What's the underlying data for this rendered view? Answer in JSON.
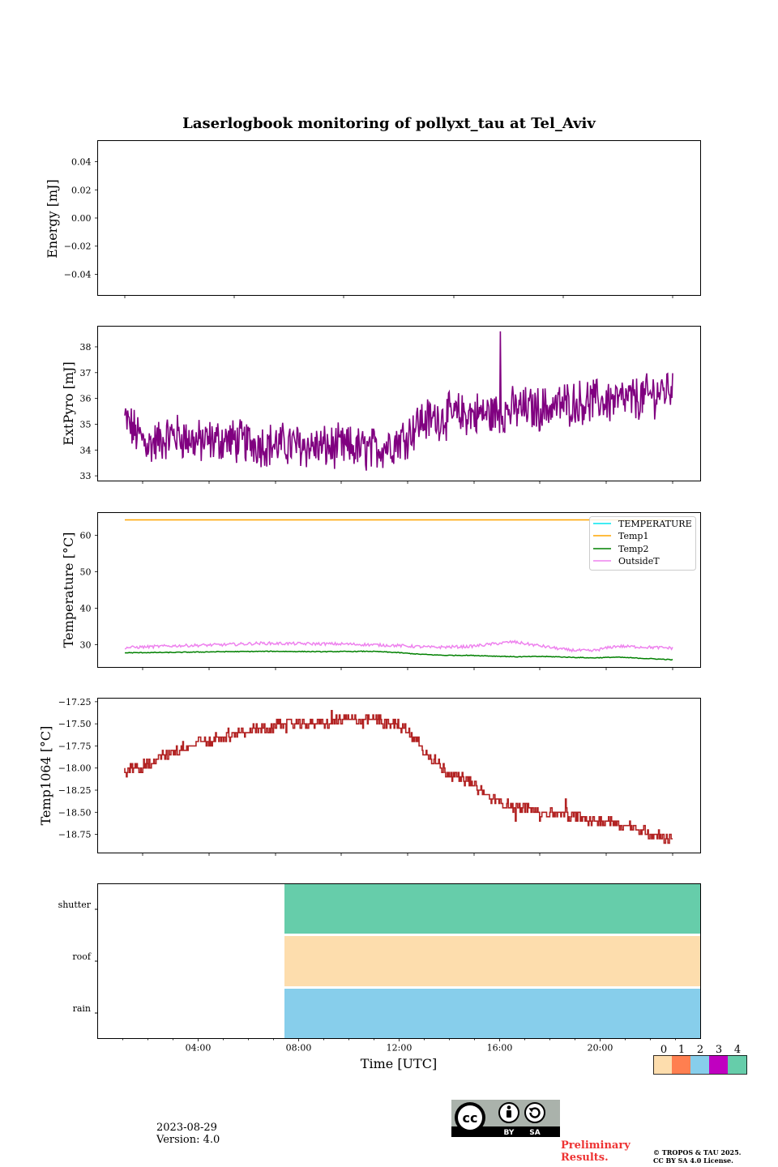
{
  "title": "Laserlogbook monitoring of pollyxt_tau at Tel_Aviv",
  "colors": {
    "extpyro": "#800080",
    "temperature": "#00e5ee",
    "temp1": "#ffa500",
    "temp2": "#008000",
    "outsideT": "#ee82ee",
    "temp1064": "#b22222",
    "status_0": "#fdddad",
    "status_1": "#ff7f50",
    "status_2": "#87ceeb",
    "status_3": "#c000c0",
    "status_4": "#66cdaa"
  },
  "chart_data": [
    {
      "id": "energy",
      "type": "line",
      "ylabel": "Energy [mJ]",
      "ylim": [
        -0.055,
        0.055
      ],
      "yticks": [
        "0.04",
        "0.02",
        "0.00",
        "−0.02",
        "−0.04"
      ],
      "series": []
    },
    {
      "id": "extpyro",
      "type": "line",
      "ylabel": "ExtPyro [mJ]",
      "ylim": [
        32.8,
        38.8
      ],
      "yticks": [
        "33",
        "34",
        "35",
        "36",
        "37",
        "38"
      ],
      "xrange_hours": [
        0.8,
        23.6
      ],
      "series": [
        {
          "values": [
            {
              "x": 1.0,
              "y": 35.2
            },
            {
              "x": 1.5,
              "y": 34.6
            },
            {
              "x": 2.0,
              "y": 34.2
            },
            {
              "x": 3.0,
              "y": 34.6
            },
            {
              "x": 4.0,
              "y": 34.3
            },
            {
              "x": 5.0,
              "y": 34.4
            },
            {
              "x": 6.0,
              "y": 34.3
            },
            {
              "x": 7.0,
              "y": 34.2
            },
            {
              "x": 8.0,
              "y": 34.2
            },
            {
              "x": 9.0,
              "y": 34.1
            },
            {
              "x": 10.0,
              "y": 34.1
            },
            {
              "x": 11.0,
              "y": 34.0
            },
            {
              "x": 12.0,
              "y": 34.3
            },
            {
              "x": 12.5,
              "y": 34.6
            },
            {
              "x": 13.0,
              "y": 35.1
            },
            {
              "x": 14.0,
              "y": 35.3
            },
            {
              "x": 15.0,
              "y": 35.4
            },
            {
              "x": 16.0,
              "y": 35.4
            },
            {
              "x": 17.0,
              "y": 35.6
            },
            {
              "x": 18.0,
              "y": 35.6
            },
            {
              "x": 19.0,
              "y": 35.8
            },
            {
              "x": 20.0,
              "y": 35.9
            },
            {
              "x": 21.0,
              "y": 35.9
            },
            {
              "x": 22.0,
              "y": 36.0
            },
            {
              "x": 23.0,
              "y": 36.3
            },
            {
              "x": 23.3,
              "y": 36.5
            }
          ],
          "spikes": [
            {
              "x": 16.3,
              "y": 38.6
            }
          ]
        }
      ]
    },
    {
      "id": "temperature",
      "type": "line",
      "ylabel": "Temperature [°C]",
      "ylim": [
        23.8,
        66.2
      ],
      "yticks": [
        "60",
        "50",
        "40",
        "30"
      ],
      "xrange_hours": [
        0.8,
        23.6
      ],
      "legend": {
        "placement": "top-right",
        "entries": [
          "TEMPERATURE",
          "Temp1",
          "Temp2",
          "OutsideT"
        ]
      },
      "series": [
        {
          "name": "TEMPERATURE",
          "values": []
        },
        {
          "name": "Temp1",
          "values": [
            {
              "x": 1.0,
              "y": 64.2
            },
            {
              "x": 23.3,
              "y": 64.2
            }
          ]
        },
        {
          "name": "Temp2",
          "values": [
            {
              "x": 1.0,
              "y": 27.8
            },
            {
              "x": 3.0,
              "y": 27.9
            },
            {
              "x": 5.0,
              "y": 28.1
            },
            {
              "x": 7.0,
              "y": 28.2
            },
            {
              "x": 9.0,
              "y": 28.1
            },
            {
              "x": 11.0,
              "y": 28.2
            },
            {
              "x": 12.0,
              "y": 27.9
            },
            {
              "x": 13.0,
              "y": 27.4
            },
            {
              "x": 14.0,
              "y": 27.1
            },
            {
              "x": 15.0,
              "y": 27.1
            },
            {
              "x": 16.0,
              "y": 26.9
            },
            {
              "x": 17.0,
              "y": 26.7
            },
            {
              "x": 18.0,
              "y": 26.8
            },
            {
              "x": 19.0,
              "y": 26.6
            },
            {
              "x": 20.0,
              "y": 26.4
            },
            {
              "x": 21.0,
              "y": 26.6
            },
            {
              "x": 22.0,
              "y": 26.3
            },
            {
              "x": 23.3,
              "y": 25.9
            }
          ]
        },
        {
          "name": "OutsideT",
          "values": [
            {
              "x": 1.0,
              "y": 29.2
            },
            {
              "x": 3.0,
              "y": 29.7
            },
            {
              "x": 5.0,
              "y": 30.0
            },
            {
              "x": 6.5,
              "y": 30.4
            },
            {
              "x": 8.0,
              "y": 30.3
            },
            {
              "x": 10.0,
              "y": 30.2
            },
            {
              "x": 12.0,
              "y": 29.8
            },
            {
              "x": 13.5,
              "y": 29.3
            },
            {
              "x": 15.0,
              "y": 29.5
            },
            {
              "x": 16.8,
              "y": 30.8
            },
            {
              "x": 18.0,
              "y": 29.6
            },
            {
              "x": 19.0,
              "y": 28.6
            },
            {
              "x": 20.0,
              "y": 28.3
            },
            {
              "x": 21.0,
              "y": 29.6
            },
            {
              "x": 22.0,
              "y": 29.4
            },
            {
              "x": 23.3,
              "y": 29.1
            }
          ]
        }
      ]
    },
    {
      "id": "temp1064",
      "type": "line",
      "ylabel": "Temp1064 [°C]",
      "ylim": [
        -18.96,
        -17.21
      ],
      "yticks": [
        "−17.25",
        "−17.50",
        "−17.75",
        "−18.00",
        "−18.25",
        "−18.50",
        "−18.75"
      ],
      "xrange_hours": [
        0.8,
        23.6
      ],
      "series": [
        {
          "values": [
            {
              "x": 1.0,
              "y": -18.05
            },
            {
              "x": 2.0,
              "y": -17.95
            },
            {
              "x": 3.0,
              "y": -17.8
            },
            {
              "x": 4.0,
              "y": -17.72
            },
            {
              "x": 5.0,
              "y": -17.65
            },
            {
              "x": 6.0,
              "y": -17.58
            },
            {
              "x": 7.0,
              "y": -17.53
            },
            {
              "x": 8.0,
              "y": -17.5
            },
            {
              "x": 9.0,
              "y": -17.5
            },
            {
              "x": 10.0,
              "y": -17.45
            },
            {
              "x": 11.0,
              "y": -17.45
            },
            {
              "x": 12.0,
              "y": -17.5
            },
            {
              "x": 12.7,
              "y": -17.62
            },
            {
              "x": 13.3,
              "y": -17.82
            },
            {
              "x": 14.0,
              "y": -18.02
            },
            {
              "x": 15.0,
              "y": -18.15
            },
            {
              "x": 16.0,
              "y": -18.35
            },
            {
              "x": 17.0,
              "y": -18.45
            },
            {
              "x": 18.0,
              "y": -18.48
            },
            {
              "x": 19.0,
              "y": -18.52
            },
            {
              "x": 20.0,
              "y": -18.6
            },
            {
              "x": 21.0,
              "y": -18.62
            },
            {
              "x": 22.0,
              "y": -18.7
            },
            {
              "x": 23.3,
              "y": -18.8
            }
          ]
        }
      ]
    },
    {
      "id": "status",
      "type": "heatmap",
      "rows": [
        "shutter",
        "roof",
        "rain"
      ],
      "xlabel": "Time [UTC]",
      "xticks": [
        "04:00",
        "08:00",
        "12:00",
        "16:00",
        "20:00"
      ],
      "segments": [
        {
          "row": "shutter",
          "start": "07:25",
          "end": "24:00",
          "value": 4
        },
        {
          "row": "roof",
          "start": "07:25",
          "end": "24:00",
          "value": 0
        },
        {
          "row": "rain",
          "start": "07:25",
          "end": "24:00",
          "value": 2
        }
      ],
      "colorbar_ticks": [
        "0",
        "1",
        "2",
        "3",
        "4"
      ]
    }
  ],
  "footer": {
    "date": "2023-08-29",
    "version": "Version: 4.0",
    "preliminary_line1": "Preliminary",
    "preliminary_line2": "Results.",
    "copyright_line1": "© TROPOS & TAU 2025.",
    "copyright_line2": "CC BY SA 4.0 License.",
    "badge_by": "BY",
    "badge_sa": "SA"
  }
}
